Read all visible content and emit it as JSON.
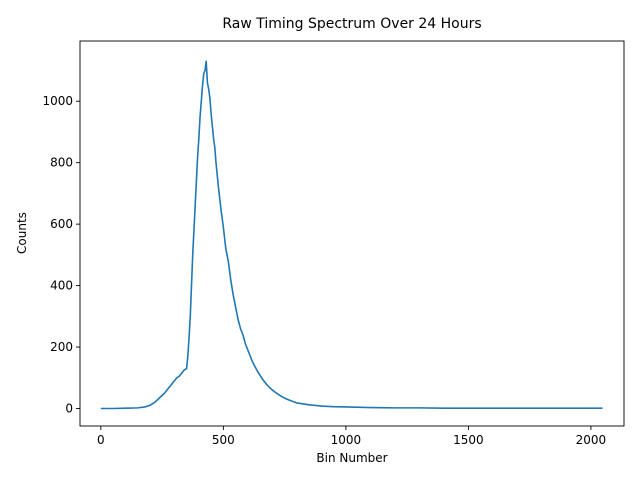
{
  "chart_data": {
    "type": "line",
    "title": "Raw Timing Spectrum Over 24 Hours",
    "xlabel": "Bin Number",
    "ylabel": "Counts",
    "xlim": [
      -85,
      2135
    ],
    "ylim": [
      -57,
      1196
    ],
    "xticks": [
      0,
      500,
      1000,
      1500,
      2000
    ],
    "yticks": [
      0,
      200,
      400,
      600,
      800,
      1000
    ],
    "grid": false,
    "color": "#1f77b4",
    "series": [
      {
        "x": [
          0,
          50,
          100,
          150,
          180,
          200,
          220,
          240,
          260,
          280,
          300,
          310,
          320,
          330,
          340,
          350,
          355,
          360,
          365,
          370,
          375,
          380,
          385,
          390,
          395,
          400,
          405,
          410,
          415,
          420,
          425,
          430,
          435,
          440,
          445,
          450,
          455,
          460,
          465,
          470,
          475,
          480,
          490,
          500,
          510,
          520,
          530,
          540,
          550,
          560,
          570,
          580,
          590,
          600,
          620,
          640,
          660,
          680,
          700,
          720,
          740,
          760,
          780,
          800,
          850,
          900,
          950,
          1000,
          1100,
          1200,
          1300,
          1400,
          1500,
          1600,
          1700,
          1800,
          1900,
          2000,
          2047
        ],
        "y": [
          0,
          0,
          1,
          2,
          5,
          10,
          20,
          35,
          50,
          70,
          90,
          100,
          105,
          115,
          125,
          130,
          170,
          230,
          300,
          400,
          500,
          580,
          660,
          740,
          820,
          880,
          950,
          1000,
          1050,
          1090,
          1100,
          1130,
          1060,
          1040,
          1010,
          960,
          920,
          880,
          850,
          800,
          760,
          720,
          650,
          590,
          520,
          480,
          420,
          370,
          330,
          290,
          260,
          240,
          210,
          190,
          150,
          120,
          95,
          75,
          60,
          48,
          38,
          30,
          24,
          18,
          12,
          8,
          6,
          5,
          3,
          2,
          2,
          1,
          1,
          1,
          1,
          1,
          1,
          1,
          1
        ]
      }
    ]
  }
}
